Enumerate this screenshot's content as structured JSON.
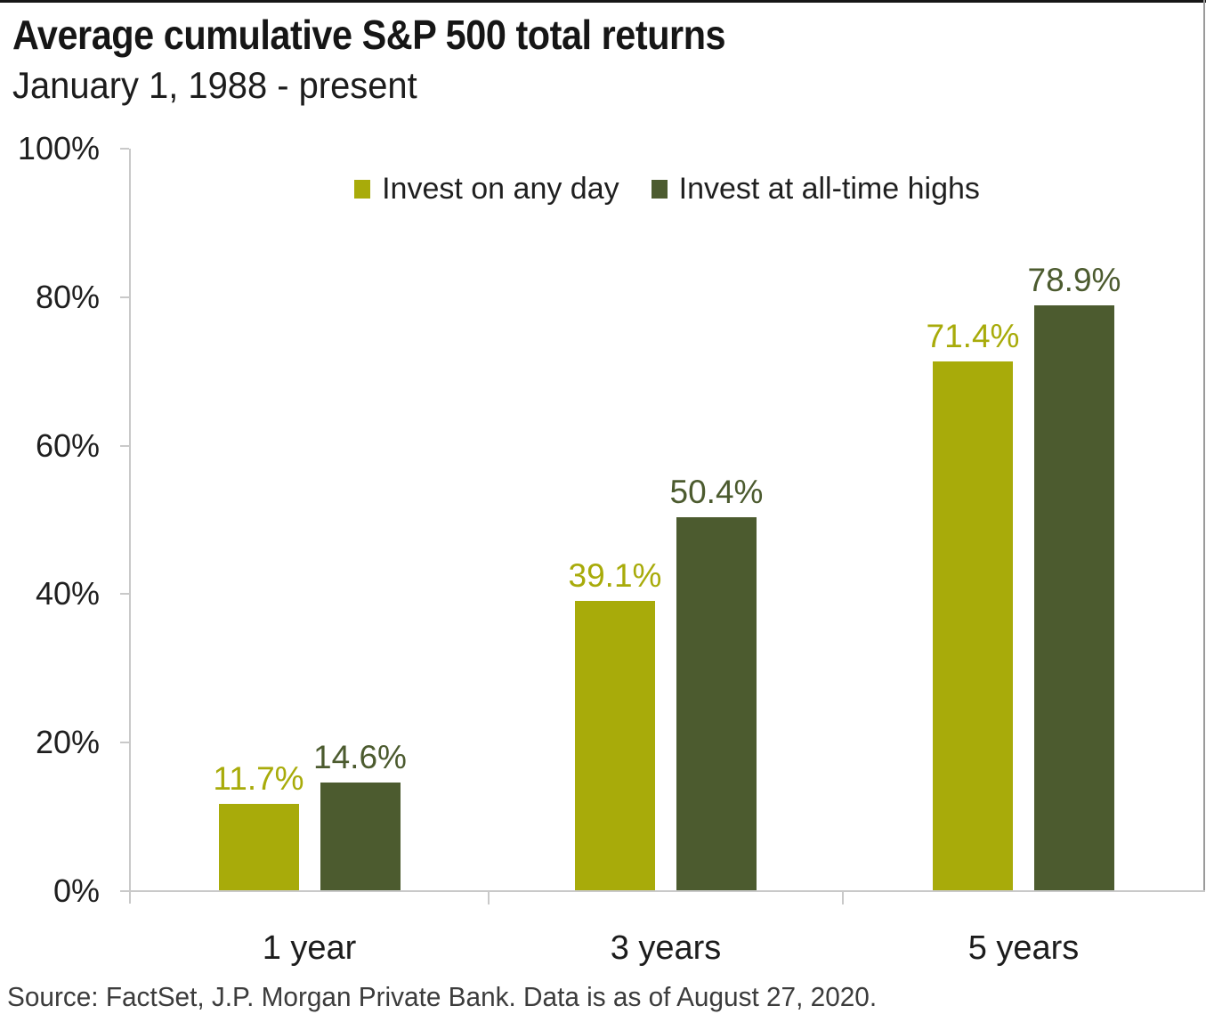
{
  "chart_data": {
    "type": "bar",
    "title": "Average cumulative S&P 500 total returns",
    "subtitle": "January 1, 1988 - present",
    "categories": [
      "1 year",
      "3 years",
      "5 years"
    ],
    "series": [
      {
        "name": "Invest on any day",
        "color": "#a8ab0a",
        "values": [
          11.7,
          39.1,
          71.4
        ]
      },
      {
        "name": "Invest at all-time highs",
        "color": "#4c5b2f",
        "values": [
          14.6,
          50.4,
          78.9
        ]
      }
    ],
    "data_labels": [
      [
        "11.7%",
        "39.1%",
        "71.4%"
      ],
      [
        "14.6%",
        "50.4%",
        "78.9%"
      ]
    ],
    "value_suffix": "%",
    "ylim": [
      0,
      100
    ],
    "yticks": [
      0,
      20,
      40,
      60,
      80,
      100
    ],
    "ytick_labels": [
      "0%",
      "20%",
      "40%",
      "60%",
      "80%",
      "100%"
    ],
    "grid": false,
    "legend_position": "top-center"
  },
  "footer": {
    "source": "Source: FactSet, J.P. Morgan Private Bank. Data is as of August 27, 2020."
  },
  "colors": {
    "series_light": "#a8ab0a",
    "series_dark": "#4c5b2f",
    "axis": "#c9c9c9",
    "text": "#1f1f1f",
    "source_text": "#3c3c3c"
  }
}
